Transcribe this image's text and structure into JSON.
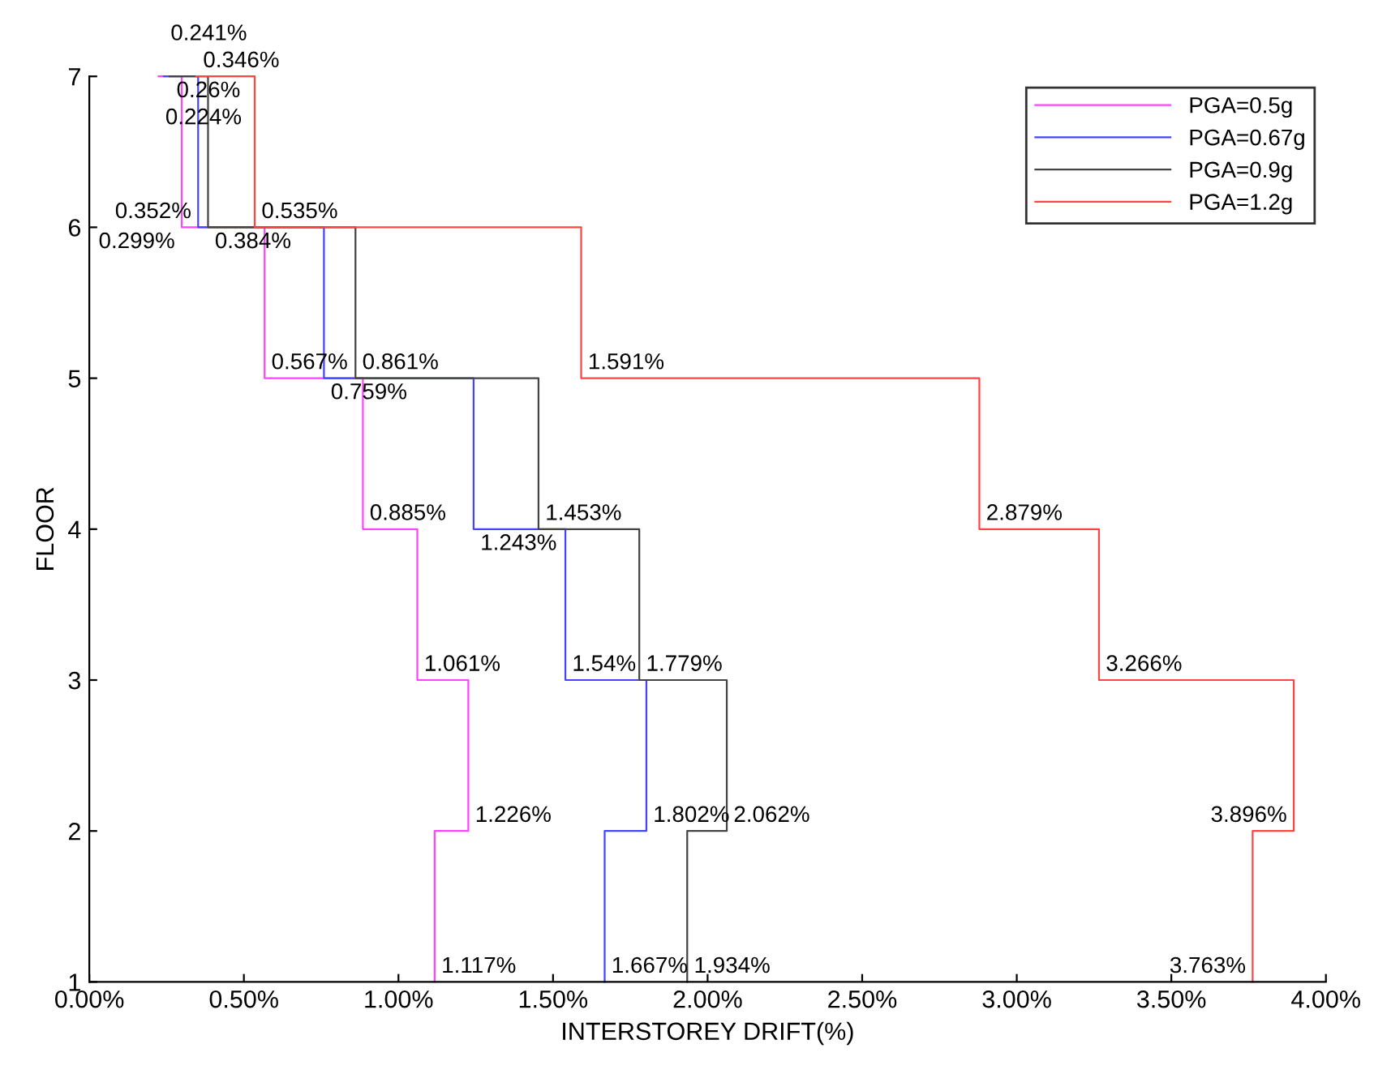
{
  "chart_data": {
    "type": "step",
    "orientation": "horizontal",
    "xlabel": "INTERSTOREY DRIFT(%)",
    "ylabel": "FLOOR",
    "series": [
      {
        "name": "PGA=0.5g",
        "color": "#ff44ff",
        "x": [
          1,
          2,
          3,
          4,
          5,
          6,
          7
        ],
        "values": [
          1.117,
          1.226,
          1.061,
          0.885,
          0.567,
          0.299,
          0.224
        ],
        "value_labels": [
          "1.117%",
          "1.226%",
          "1.061%",
          "0.885%",
          "0.567%",
          "0.299%",
          "0.224%"
        ]
      },
      {
        "name": "PGA=0.67g",
        "color": "#4444ff",
        "x": [
          1,
          2,
          3,
          4,
          5,
          6,
          7
        ],
        "values": [
          1.667,
          1.802,
          1.54,
          1.243,
          0.759,
          0.352,
          0.241
        ],
        "value_labels": [
          "1.667%",
          "1.802%",
          "1.54%",
          "1.243%",
          "0.759%",
          "0.352%",
          "0.241%"
        ]
      },
      {
        "name": "PGA=0.9g",
        "color": "#444444",
        "x": [
          1,
          2,
          3,
          4,
          5,
          6,
          7
        ],
        "values": [
          1.934,
          2.062,
          1.779,
          1.453,
          0.861,
          0.384,
          0.26
        ],
        "value_labels": [
          "1.934%",
          "2.062%",
          "1.779%",
          "1.453%",
          "0.861%",
          "0.384%",
          "0.26%"
        ]
      },
      {
        "name": "PGA=1.2g",
        "color": "#ff4444",
        "x": [
          1,
          2,
          3,
          4,
          5,
          6,
          7
        ],
        "values": [
          3.763,
          3.896,
          3.266,
          2.879,
          1.591,
          0.535,
          0.346
        ],
        "value_labels": [
          "3.763%",
          "3.896%",
          "3.266%",
          "2.879%",
          "1.591%",
          "0.535%",
          "0.346%"
        ]
      }
    ],
    "xlim": [
      0,
      4
    ],
    "ylim": [
      1,
      7
    ],
    "xticks": [
      {
        "value": 0,
        "label": "0.00%"
      },
      {
        "value": 0.5,
        "label": "0.50%"
      },
      {
        "value": 1,
        "label": "1.00%"
      },
      {
        "value": 1.5,
        "label": "1.50%"
      },
      {
        "value": 2,
        "label": "2.00%"
      },
      {
        "value": 2.5,
        "label": "2.50%"
      },
      {
        "value": 3,
        "label": "3.00%"
      },
      {
        "value": 3.5,
        "label": "3.50%"
      },
      {
        "value": 4,
        "label": "4.00%"
      }
    ],
    "yticks": [
      1,
      2,
      3,
      4,
      5,
      6,
      7
    ],
    "legend": "top right",
    "line_style": "solid"
  }
}
